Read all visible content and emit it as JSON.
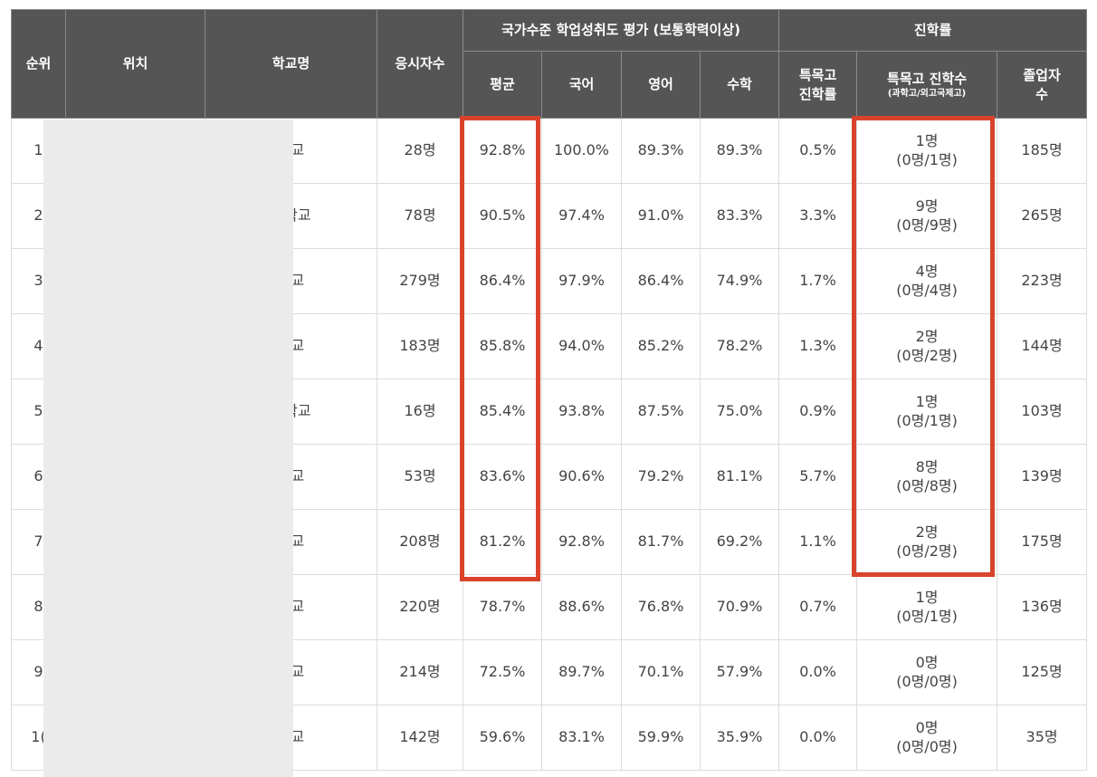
{
  "headers": {
    "rank": "순위",
    "location": "위치",
    "school": "학교명",
    "examinees": "응시자수",
    "assessment_group": "국가수준 학업성취도 평가 (보통학력이상)",
    "avg": "평균",
    "korean": "국어",
    "english": "영어",
    "math": "수학",
    "advancement_group": "진학률",
    "special_rate_line1": "특목고",
    "special_rate_line2": "진학률",
    "special_count": "특목고 진학수",
    "special_count_sub": "(과학고/외고국제고)",
    "graduates_line1": "졸업자",
    "graduates_line2": "수"
  },
  "rows": [
    {
      "rank": "1",
      "school": "학교",
      "examinees": "28명",
      "avg": "92.8%",
      "korean": "100.0%",
      "english": "89.3%",
      "math": "89.3%",
      "special_rate": "0.5%",
      "special_count": "1명",
      "special_split": "(0명/1명)",
      "graduates": "185명"
    },
    {
      "rank": "2",
      "school": "중학교",
      "examinees": "78명",
      "avg": "90.5%",
      "korean": "97.4%",
      "english": "91.0%",
      "math": "83.3%",
      "special_rate": "3.3%",
      "special_count": "9명",
      "special_split": "(0명/9명)",
      "graduates": "265명"
    },
    {
      "rank": "3",
      "school": "학교",
      "examinees": "279명",
      "avg": "86.4%",
      "korean": "97.9%",
      "english": "86.4%",
      "math": "74.9%",
      "special_rate": "1.7%",
      "special_count": "4명",
      "special_split": "(0명/4명)",
      "graduates": "223명"
    },
    {
      "rank": "4",
      "school": "학교",
      "examinees": "183명",
      "avg": "85.8%",
      "korean": "94.0%",
      "english": "85.2%",
      "math": "78.2%",
      "special_rate": "1.3%",
      "special_count": "2명",
      "special_split": "(0명/2명)",
      "graduates": "144명"
    },
    {
      "rank": "5",
      "school": "중학교",
      "examinees": "16명",
      "avg": "85.4%",
      "korean": "93.8%",
      "english": "87.5%",
      "math": "75.0%",
      "special_rate": "0.9%",
      "special_count": "1명",
      "special_split": "(0명/1명)",
      "graduates": "103명"
    },
    {
      "rank": "6",
      "school": "학교",
      "examinees": "53명",
      "avg": "83.6%",
      "korean": "90.6%",
      "english": "79.2%",
      "math": "81.1%",
      "special_rate": "5.7%",
      "special_count": "8명",
      "special_split": "(0명/8명)",
      "graduates": "139명"
    },
    {
      "rank": "7",
      "school": "학교",
      "examinees": "208명",
      "avg": "81.2%",
      "korean": "92.8%",
      "english": "81.7%",
      "math": "69.2%",
      "special_rate": "1.1%",
      "special_count": "2명",
      "special_split": "(0명/2명)",
      "graduates": "175명"
    },
    {
      "rank": "8",
      "school": "학교",
      "examinees": "220명",
      "avg": "78.7%",
      "korean": "88.6%",
      "english": "76.8%",
      "math": "70.9%",
      "special_rate": "0.7%",
      "special_count": "1명",
      "special_split": "(0명/1명)",
      "graduates": "136명"
    },
    {
      "rank": "9",
      "school": "학교",
      "examinees": "214명",
      "avg": "72.5%",
      "korean": "89.7%",
      "english": "70.1%",
      "math": "57.9%",
      "special_rate": "0.0%",
      "special_count": "0명",
      "special_split": "(0명/0명)",
      "graduates": "125명"
    },
    {
      "rank": "1(",
      "school": "학교",
      "examinees": "142명",
      "avg": "59.6%",
      "korean": "83.1%",
      "english": "59.9%",
      "math": "35.9%",
      "special_rate": "0.0%",
      "special_count": "0명",
      "special_split": "(0명/0명)",
      "graduates": "35명"
    }
  ],
  "colors": {
    "header_bg": "#555555",
    "highlight": "#d9432b",
    "redaction": "#ebebeb"
  }
}
